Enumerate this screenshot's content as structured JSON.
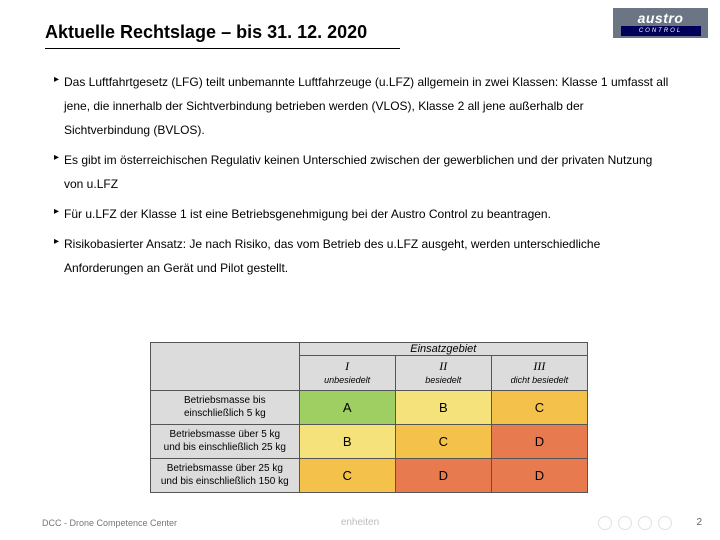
{
  "logo": {
    "top": "austro",
    "bottom": "CONTROL"
  },
  "title": "Aktuelle Rechtslage – bis 31. 12. 2020",
  "bullets": {
    "b1": "Das Luftfahrtgesetz (LFG) teilt unbemannte Luftfahrzeuge (u.LFZ) allgemein in zwei Klassen: Klasse 1 umfasst all jene, die innerhalb der Sichtverbindung betrieben werden (VLOS), Klasse 2 all jene außerhalb der Sichtverbindung (BVLOS).",
    "b2": "Es gibt im österreichischen Regulativ keinen Unterschied zwischen der gewerblichen und der privaten Nutzung von u.LFZ",
    "b3": "Für u.LFZ der Klasse 1 ist eine Betriebsgenehmigung bei der Austro Control zu beantragen.",
    "b4": "Risikobasierter Ansatz: Je nach Risiko, das vom Betrieb des u.LFZ ausgeht, werden unterschiedliche Anforderungen an Gerät und Pilot gestellt."
  },
  "table": {
    "super_header": "Einsatzgebiet",
    "col_widths": {
      "rowhdr": "34%",
      "c1": "22%",
      "c2": "22%",
      "c3": "22%"
    },
    "columns": [
      {
        "rn": "I",
        "sub": "unbesiedelt"
      },
      {
        "rn": "II",
        "sub": "besiedelt"
      },
      {
        "rn": "III",
        "sub": "dicht besiedelt"
      }
    ],
    "rows": [
      {
        "label_l1": "Betriebsmasse bis",
        "label_l2": "einschließlich 5 kg",
        "cells": [
          "A",
          "B",
          "C"
        ]
      },
      {
        "label_l1": "Betriebsmasse über 5 kg",
        "label_l2": "und bis einschließlich 25 kg",
        "cells": [
          "B",
          "C",
          "D"
        ]
      },
      {
        "label_l1": "Betriebsmasse über 25 kg",
        "label_l2": "und bis einschließlich 150 kg",
        "cells": [
          "C",
          "D",
          "D"
        ]
      }
    ],
    "cell_colors": {
      "A": "#9fce63",
      "B": "#f6e27a",
      "C": "#f4c24b",
      "D": "#e77a4f"
    },
    "header_bg": "#dcdcdc",
    "border_color": "#555555",
    "font_size_header": 11,
    "font_size_rowhdr": 10,
    "font_size_cell": 13
  },
  "footer": {
    "left": "DCC - Drone Competence Center",
    "center": "enheiten",
    "page": "2"
  }
}
